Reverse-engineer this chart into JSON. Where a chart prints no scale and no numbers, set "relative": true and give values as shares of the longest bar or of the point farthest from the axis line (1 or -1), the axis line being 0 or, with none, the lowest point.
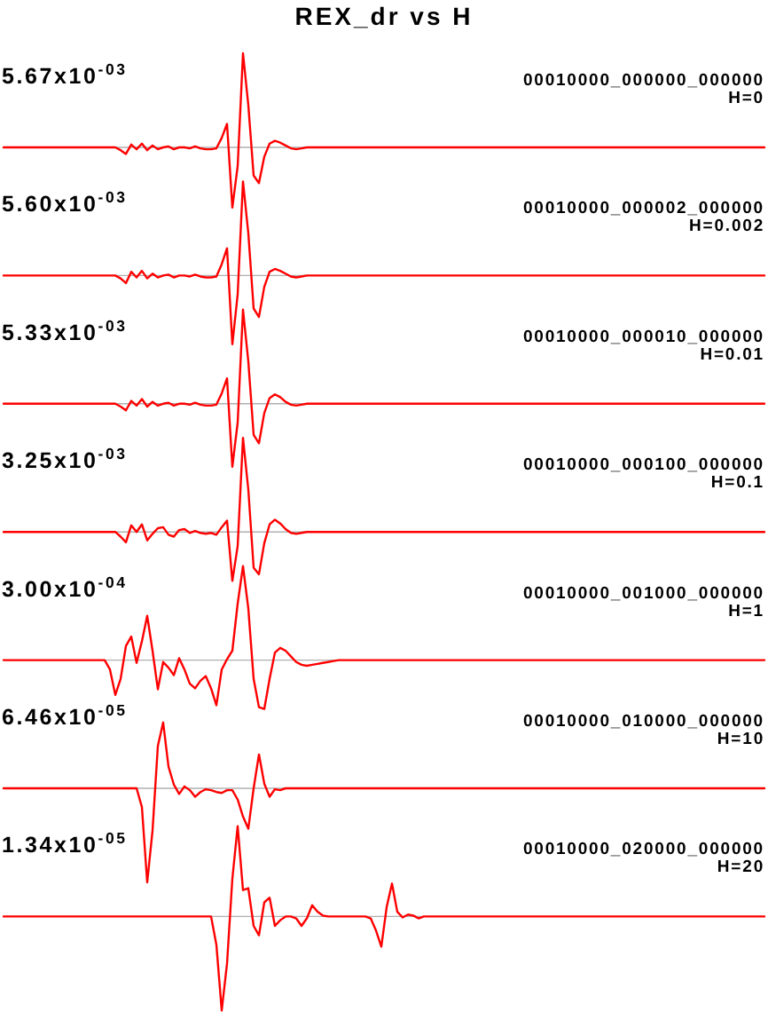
{
  "chart_data": [
    {
      "type": "line",
      "title": "REX_dr vs H",
      "relative": true,
      "annotations": [
        "5.67x10$^{-03}$",
        "00010000_000000_000000",
        "H=0"
      ],
      "categories": [
        null,
        null,
        null,
        null,
        null,
        null,
        null,
        null,
        null,
        null,
        null,
        null,
        null,
        null,
        null,
        null,
        null,
        null,
        null,
        null,
        null,
        null,
        null,
        null,
        null,
        null,
        null,
        null,
        null,
        null,
        null,
        null,
        null,
        null,
        null,
        null,
        null,
        null,
        null,
        null,
        null,
        null,
        null,
        null,
        null,
        null,
        null,
        null,
        null,
        null,
        null,
        null,
        null,
        null,
        null,
        null,
        null,
        null,
        null,
        null,
        null,
        null,
        null,
        null,
        null,
        null,
        null,
        null,
        null,
        null,
        null,
        null,
        null,
        null,
        null,
        null,
        null,
        null,
        null,
        null,
        null,
        null,
        null,
        null,
        null,
        null,
        null,
        null,
        null,
        null,
        null,
        null,
        null,
        null,
        null,
        null,
        null,
        null,
        null,
        null,
        null,
        null,
        null,
        null,
        null,
        null,
        null,
        null,
        null,
        null,
        null,
        null,
        null,
        null,
        null,
        null,
        null,
        null,
        null,
        null,
        null,
        null,
        null,
        null,
        null,
        null,
        null,
        null,
        null,
        null,
        null,
        null,
        null,
        null,
        null,
        null,
        null,
        null,
        null,
        null,
        null,
        null,
        null,
        null
      ],
      "series": [
        {
          "color": "#ff0000",
          "values": [
            0,
            0,
            0,
            0,
            0,
            0,
            0,
            0,
            0,
            0,
            0,
            0,
            0,
            0,
            0,
            0,
            0,
            0,
            0,
            0,
            0,
            0,
            -0.03,
            -0.07,
            0.03,
            -0.02,
            0.04,
            -0.03,
            0.02,
            -0.02,
            0,
            0.01,
            -0.02,
            0,
            0,
            -0.01,
            0.01,
            -0.01,
            -0.02,
            -0.02,
            -0.01,
            0.1,
            0.25,
            -0.64,
            -0.2,
            1,
            0.45,
            -0.3,
            -0.38,
            -0.1,
            0.04,
            0.07,
            0.05,
            0.02,
            -0.01,
            -0.02,
            -0.01,
            0,
            0,
            0,
            0,
            0,
            0,
            0,
            0,
            0,
            0,
            0,
            0,
            0,
            0,
            0,
            0,
            0,
            0,
            0,
            0,
            0,
            0,
            0,
            0,
            0,
            0,
            0,
            0,
            0,
            0,
            0,
            0,
            0,
            0,
            0,
            0,
            0,
            0,
            0,
            0,
            0,
            0,
            0,
            0,
            0,
            0,
            0,
            0,
            0,
            0,
            0,
            0,
            0,
            0,
            0,
            0,
            0,
            0,
            0,
            0,
            0,
            0,
            0,
            0,
            0,
            0,
            0,
            0,
            0,
            0,
            0,
            0,
            0,
            0,
            0,
            0,
            0,
            0,
            0,
            0,
            0,
            0,
            0,
            0,
            0,
            0,
            0
          ]
        }
      ]
    },
    {
      "type": "line",
      "relative": true,
      "annotations": [
        "5.60x10$^{-03}$",
        "00010000_000002_000000",
        "H=0.002"
      ],
      "categories": [
        null,
        null,
        null,
        null,
        null,
        null,
        null,
        null,
        null,
        null,
        null,
        null,
        null,
        null,
        null,
        null,
        null,
        null,
        null,
        null,
        null,
        null,
        null,
        null,
        null,
        null,
        null,
        null,
        null,
        null,
        null,
        null,
        null,
        null,
        null,
        null,
        null,
        null,
        null,
        null,
        null,
        null,
        null,
        null,
        null,
        null,
        null,
        null,
        null,
        null,
        null,
        null,
        null,
        null,
        null,
        null,
        null,
        null,
        null,
        null,
        null,
        null,
        null,
        null,
        null,
        null,
        null,
        null,
        null,
        null,
        null,
        null,
        null,
        null,
        null,
        null,
        null,
        null,
        null,
        null,
        null,
        null,
        null,
        null,
        null,
        null,
        null,
        null,
        null,
        null,
        null,
        null,
        null,
        null,
        null,
        null,
        null,
        null,
        null,
        null,
        null,
        null,
        null,
        null,
        null,
        null,
        null,
        null,
        null,
        null,
        null,
        null,
        null,
        null,
        null,
        null,
        null,
        null,
        null,
        null,
        null,
        null,
        null,
        null,
        null,
        null,
        null,
        null,
        null,
        null,
        null,
        null,
        null,
        null,
        null,
        null,
        null,
        null,
        null,
        null,
        null,
        null,
        null,
        null
      ],
      "series": [
        {
          "color": "#ff0000",
          "values": [
            0,
            0,
            0,
            0,
            0,
            0,
            0,
            0,
            0,
            0,
            0,
            0,
            0,
            0,
            0,
            0,
            0,
            0,
            0,
            0,
            0,
            0,
            -0.03,
            -0.08,
            0.04,
            -0.02,
            0.05,
            -0.03,
            0.02,
            -0.02,
            0,
            0.01,
            -0.02,
            0,
            0,
            -0.01,
            0.01,
            -0.01,
            -0.02,
            -0.02,
            -0.01,
            0.12,
            0.29,
            -0.73,
            -0.2,
            1,
            0.45,
            -0.35,
            -0.44,
            -0.12,
            0.04,
            0.07,
            0.05,
            0.02,
            -0.01,
            -0.02,
            -0.01,
            0,
            0,
            0,
            0,
            0,
            0,
            0,
            0,
            0,
            0,
            0,
            0,
            0,
            0,
            0,
            0,
            0,
            0,
            0,
            0,
            0,
            0,
            0,
            0,
            0,
            0,
            0,
            0,
            0,
            0,
            0,
            0,
            0,
            0,
            0,
            0,
            0,
            0,
            0,
            0,
            0,
            0,
            0,
            0,
            0,
            0,
            0,
            0,
            0,
            0,
            0,
            0,
            0,
            0,
            0,
            0,
            0,
            0,
            0,
            0,
            0,
            0,
            0,
            0,
            0,
            0,
            0,
            0,
            0,
            0,
            0,
            0,
            0,
            0,
            0,
            0,
            0,
            0,
            0,
            0,
            0,
            0,
            0,
            0,
            0,
            0,
            0
          ]
        }
      ]
    },
    {
      "type": "line",
      "relative": true,
      "annotations": [
        "5.33x10$^{-03}$",
        "00010000_000010_000000",
        "H=0.01"
      ],
      "categories": [
        null,
        null,
        null,
        null,
        null,
        null,
        null,
        null,
        null,
        null,
        null,
        null,
        null,
        null,
        null,
        null,
        null,
        null,
        null,
        null,
        null,
        null,
        null,
        null,
        null,
        null,
        null,
        null,
        null,
        null,
        null,
        null,
        null,
        null,
        null,
        null,
        null,
        null,
        null,
        null,
        null,
        null,
        null,
        null,
        null,
        null,
        null,
        null,
        null,
        null,
        null,
        null,
        null,
        null,
        null,
        null,
        null,
        null,
        null,
        null,
        null,
        null,
        null,
        null,
        null,
        null,
        null,
        null,
        null,
        null,
        null,
        null,
        null,
        null,
        null,
        null,
        null,
        null,
        null,
        null,
        null,
        null,
        null,
        null,
        null,
        null,
        null,
        null,
        null,
        null,
        null,
        null,
        null,
        null,
        null,
        null,
        null,
        null,
        null,
        null,
        null,
        null,
        null,
        null,
        null,
        null,
        null,
        null,
        null,
        null,
        null,
        null,
        null,
        null,
        null,
        null,
        null,
        null,
        null,
        null,
        null,
        null,
        null,
        null,
        null,
        null,
        null,
        null,
        null,
        null,
        null,
        null,
        null,
        null,
        null,
        null,
        null,
        null,
        null,
        null,
        null,
        null,
        null,
        null
      ],
      "series": [
        {
          "color": "#ff0000",
          "values": [
            0,
            0,
            0,
            0,
            0,
            0,
            0,
            0,
            0,
            0,
            0,
            0,
            0,
            0,
            0,
            0,
            0,
            0,
            0,
            0,
            0,
            0,
            -0.03,
            -0.07,
            0.03,
            -0.02,
            0.05,
            -0.03,
            0.02,
            -0.02,
            0,
            0.01,
            -0.02,
            0,
            0,
            -0.01,
            0.01,
            -0.01,
            -0.02,
            -0.02,
            -0.01,
            0.11,
            0.27,
            -0.67,
            -0.2,
            1,
            0.45,
            -0.33,
            -0.42,
            -0.1,
            0.06,
            0.1,
            0.07,
            0.02,
            -0.01,
            -0.02,
            -0.01,
            0,
            0,
            0,
            0,
            0,
            0,
            0,
            0,
            0,
            0,
            0,
            0,
            0,
            0,
            0,
            0,
            0,
            0,
            0,
            0,
            0,
            0,
            0,
            0,
            0,
            0,
            0,
            0,
            0,
            0,
            0,
            0,
            0,
            0,
            0,
            0,
            0,
            0,
            0,
            0,
            0,
            0,
            0,
            0,
            0,
            0,
            0,
            0,
            0,
            0,
            0,
            0,
            0,
            0,
            0,
            0,
            0,
            0,
            0,
            0,
            0,
            0,
            0,
            0,
            0,
            0,
            0,
            0,
            0,
            0,
            0,
            0,
            0,
            0,
            0,
            0,
            0,
            0,
            0,
            0,
            0,
            0,
            0,
            0,
            0,
            0,
            0
          ]
        }
      ]
    },
    {
      "type": "line",
      "relative": true,
      "annotations": [
        "3.25x10$^{-03}$",
        "00010000_000100_000000",
        "H=0.1"
      ],
      "categories": [
        null,
        null,
        null,
        null,
        null,
        null,
        null,
        null,
        null,
        null,
        null,
        null,
        null,
        null,
        null,
        null,
        null,
        null,
        null,
        null,
        null,
        null,
        null,
        null,
        null,
        null,
        null,
        null,
        null,
        null,
        null,
        null,
        null,
        null,
        null,
        null,
        null,
        null,
        null,
        null,
        null,
        null,
        null,
        null,
        null,
        null,
        null,
        null,
        null,
        null,
        null,
        null,
        null,
        null,
        null,
        null,
        null,
        null,
        null,
        null,
        null,
        null,
        null,
        null,
        null,
        null,
        null,
        null,
        null,
        null,
        null,
        null,
        null,
        null,
        null,
        null,
        null,
        null,
        null,
        null,
        null,
        null,
        null,
        null,
        null,
        null,
        null,
        null,
        null,
        null,
        null,
        null,
        null,
        null,
        null,
        null,
        null,
        null,
        null,
        null,
        null,
        null,
        null,
        null,
        null,
        null,
        null,
        null,
        null,
        null,
        null,
        null,
        null,
        null,
        null,
        null,
        null,
        null,
        null,
        null,
        null,
        null,
        null,
        null,
        null,
        null,
        null,
        null,
        null,
        null,
        null,
        null,
        null,
        null,
        null,
        null,
        null,
        null,
        null,
        null,
        null,
        null,
        null,
        null
      ],
      "series": [
        {
          "color": "#ff0000",
          "values": [
            0,
            0,
            0,
            0,
            0,
            0,
            0,
            0,
            0,
            0,
            0,
            0,
            0,
            0,
            0,
            0,
            0,
            0,
            0,
            0,
            0,
            0,
            -0.05,
            -0.11,
            0.07,
            0,
            0.08,
            -0.09,
            -0.02,
            0.04,
            0.05,
            -0.03,
            -0.05,
            0.02,
            0.03,
            -0.01,
            0.01,
            -0.01,
            -0.02,
            -0.01,
            -0.03,
            0.05,
            0.12,
            -0.52,
            -0.15,
            1,
            0.45,
            -0.38,
            -0.45,
            -0.12,
            0.08,
            0.13,
            0.09,
            0.03,
            -0.01,
            -0.02,
            -0.01,
            0,
            0,
            0,
            0,
            0,
            0,
            0,
            0,
            0,
            0,
            0,
            0,
            0,
            0,
            0,
            0,
            0,
            0,
            0,
            0,
            0,
            0,
            0,
            0,
            0,
            0,
            0,
            0,
            0,
            0,
            0,
            0,
            0,
            0,
            0,
            0,
            0,
            0,
            0,
            0,
            0,
            0,
            0,
            0,
            0,
            0,
            0,
            0,
            0,
            0,
            0,
            0,
            0,
            0,
            0,
            0,
            0,
            0,
            0,
            0,
            0,
            0,
            0,
            0,
            0,
            0,
            0,
            0,
            0,
            0,
            0,
            0,
            0,
            0,
            0,
            0,
            0,
            0,
            0,
            0,
            0,
            0,
            0,
            0,
            0,
            0,
            0
          ]
        }
      ]
    },
    {
      "type": "line",
      "relative": true,
      "annotations": [
        "3.00x10$^{-04}$",
        "00010000_001000_000000",
        "H=1"
      ],
      "categories": [
        null,
        null,
        null,
        null,
        null,
        null,
        null,
        null,
        null,
        null,
        null,
        null,
        null,
        null,
        null,
        null,
        null,
        null,
        null,
        null,
        null,
        null,
        null,
        null,
        null,
        null,
        null,
        null,
        null,
        null,
        null,
        null,
        null,
        null,
        null,
        null,
        null,
        null,
        null,
        null,
        null,
        null,
        null,
        null,
        null,
        null,
        null,
        null,
        null,
        null,
        null,
        null,
        null,
        null,
        null,
        null,
        null,
        null,
        null,
        null,
        null,
        null,
        null,
        null,
        null,
        null,
        null,
        null,
        null,
        null,
        null,
        null,
        null,
        null,
        null,
        null,
        null,
        null,
        null,
        null,
        null,
        null,
        null,
        null,
        null,
        null,
        null,
        null,
        null,
        null,
        null,
        null,
        null,
        null,
        null,
        null,
        null,
        null,
        null,
        null,
        null,
        null,
        null,
        null,
        null,
        null,
        null,
        null,
        null,
        null,
        null,
        null,
        null,
        null,
        null,
        null,
        null,
        null,
        null,
        null,
        null,
        null,
        null,
        null,
        null,
        null,
        null,
        null,
        null,
        null,
        null,
        null,
        null,
        null,
        null,
        null,
        null,
        null,
        null,
        null,
        null,
        null,
        null,
        null
      ],
      "series": [
        {
          "color": "#ff0000",
          "values": [
            0,
            0,
            0,
            0,
            0,
            0,
            0,
            0,
            0,
            0,
            0,
            0,
            0,
            0,
            0,
            0,
            0,
            0,
            0,
            0,
            -0.1,
            -0.37,
            -0.2,
            0.15,
            0.25,
            -0.03,
            0.2,
            0.47,
            0.1,
            -0.31,
            -0.02,
            -0.08,
            -0.16,
            0.02,
            -0.1,
            -0.25,
            -0.3,
            -0.22,
            -0.17,
            -0.3,
            -0.48,
            -0.1,
            0.01,
            0.1,
            0.6,
            1,
            0.55,
            -0.2,
            -0.5,
            -0.52,
            -0.2,
            0.08,
            0.13,
            0.1,
            0.04,
            -0.02,
            -0.05,
            -0.06,
            -0.05,
            -0.04,
            -0.03,
            -0.02,
            -0.01,
            0,
            0,
            0,
            0,
            0,
            0,
            0,
            0,
            0,
            0,
            0,
            0,
            0,
            0,
            0,
            0,
            0,
            0,
            0,
            0,
            0,
            0,
            0,
            0,
            0,
            0,
            0,
            0,
            0,
            0,
            0,
            0,
            0,
            0,
            0,
            0,
            0,
            0,
            0,
            0,
            0,
            0,
            0,
            0,
            0,
            0,
            0,
            0,
            0,
            0,
            0,
            0,
            0,
            0,
            0,
            0,
            0,
            0,
            0,
            0,
            0,
            0,
            0,
            0,
            0,
            0,
            0,
            0,
            0,
            0,
            0,
            0,
            0,
            0,
            0,
            0,
            0,
            0,
            0,
            0,
            0
          ]
        }
      ]
    },
    {
      "type": "line",
      "relative": true,
      "annotations": [
        "6.46x10$^{-05}$",
        "00010000_010000_000000",
        "H=10"
      ],
      "categories": [
        null,
        null,
        null,
        null,
        null,
        null,
        null,
        null,
        null,
        null,
        null,
        null,
        null,
        null,
        null,
        null,
        null,
        null,
        null,
        null,
        null,
        null,
        null,
        null,
        null,
        null,
        null,
        null,
        null,
        null,
        null,
        null,
        null,
        null,
        null,
        null,
        null,
        null,
        null,
        null,
        null,
        null,
        null,
        null,
        null,
        null,
        null,
        null,
        null,
        null,
        null,
        null,
        null,
        null,
        null,
        null,
        null,
        null,
        null,
        null,
        null,
        null,
        null,
        null,
        null,
        null,
        null,
        null,
        null,
        null,
        null,
        null,
        null,
        null,
        null,
        null,
        null,
        null,
        null,
        null,
        null,
        null,
        null,
        null,
        null,
        null,
        null,
        null,
        null,
        null,
        null,
        null,
        null,
        null,
        null,
        null,
        null,
        null,
        null,
        null,
        null,
        null,
        null,
        null,
        null,
        null,
        null,
        null,
        null,
        null,
        null,
        null,
        null,
        null,
        null,
        null,
        null,
        null,
        null,
        null,
        null,
        null,
        null,
        null,
        null,
        null,
        null,
        null,
        null,
        null,
        null,
        null,
        null,
        null,
        null,
        null,
        null,
        null,
        null,
        null,
        null,
        null,
        null,
        null
      ],
      "series": [
        {
          "color": "#ff0000",
          "values": [
            0,
            0,
            0,
            0,
            0,
            0,
            0,
            0,
            0,
            0,
            0,
            0,
            0,
            0,
            0,
            0,
            0,
            0,
            0,
            0,
            0,
            0,
            0,
            0,
            0,
            0,
            -0.2,
            -1,
            -0.45,
            0.45,
            0.7,
            0.23,
            0.04,
            -0.06,
            0.02,
            -0.02,
            -0.09,
            -0.04,
            -0.01,
            -0.02,
            -0.04,
            -0.05,
            -0.02,
            -0.02,
            -0.12,
            -0.3,
            -0.43,
            0,
            0.36,
            0.05,
            -0.09,
            -0.01,
            -0.02,
            0,
            0,
            0,
            0,
            0,
            0,
            0,
            0,
            0,
            0,
            0,
            0,
            0,
            0,
            0,
            0,
            0,
            0,
            0,
            0,
            0,
            0,
            0,
            0,
            0,
            0,
            0,
            0,
            0,
            0,
            0,
            0,
            0,
            0,
            0,
            0,
            0,
            0,
            0,
            0,
            0,
            0,
            0,
            0,
            0,
            0,
            0,
            0,
            0,
            0,
            0,
            0,
            0,
            0,
            0,
            0,
            0,
            0,
            0,
            0,
            0,
            0,
            0,
            0,
            0,
            0,
            0,
            0,
            0,
            0,
            0,
            0,
            0,
            0,
            0,
            0,
            0,
            0,
            0,
            0,
            0,
            0,
            0,
            0,
            0,
            0,
            0,
            0,
            0,
            0,
            0
          ]
        }
      ]
    },
    {
      "type": "line",
      "relative": true,
      "annotations": [
        "1.34x10$^{-05}$",
        "00010000_020000_000000",
        "H=20"
      ],
      "categories": [
        null,
        null,
        null,
        null,
        null,
        null,
        null,
        null,
        null,
        null,
        null,
        null,
        null,
        null,
        null,
        null,
        null,
        null,
        null,
        null,
        null,
        null,
        null,
        null,
        null,
        null,
        null,
        null,
        null,
        null,
        null,
        null,
        null,
        null,
        null,
        null,
        null,
        null,
        null,
        null,
        null,
        null,
        null,
        null,
        null,
        null,
        null,
        null,
        null,
        null,
        null,
        null,
        null,
        null,
        null,
        null,
        null,
        null,
        null,
        null,
        null,
        null,
        null,
        null,
        null,
        null,
        null,
        null,
        null,
        null,
        null,
        null,
        null,
        null,
        null,
        null,
        null,
        null,
        null,
        null,
        null,
        null,
        null,
        null,
        null,
        null,
        null,
        null,
        null,
        null,
        null,
        null,
        null,
        null,
        null,
        null,
        null,
        null,
        null,
        null,
        null,
        null,
        null,
        null,
        null,
        null,
        null,
        null,
        null,
        null,
        null,
        null,
        null,
        null,
        null,
        null,
        null,
        null,
        null,
        null,
        null,
        null,
        null,
        null,
        null,
        null,
        null,
        null,
        null,
        null,
        null,
        null,
        null,
        null,
        null,
        null,
        null,
        null,
        null,
        null,
        null,
        null,
        null,
        null
      ],
      "series": [
        {
          "color": "#ff0000",
          "values": [
            0,
            0,
            0,
            0,
            0,
            0,
            0,
            0,
            0,
            0,
            0,
            0,
            0,
            0,
            0,
            0,
            0,
            0,
            0,
            0,
            0,
            0,
            0,
            0,
            0,
            0,
            0,
            0,
            0,
            0,
            0,
            0,
            0,
            0,
            0,
            0,
            0,
            0,
            0,
            0,
            -0.3,
            -1,
            -0.5,
            0.4,
            0.96,
            0.28,
            0.3,
            -0.1,
            -0.2,
            0.15,
            0.2,
            -0.1,
            -0.04,
            0,
            0,
            -0.02,
            -0.1,
            -0.02,
            0.12,
            0.05,
            0.01,
            0,
            0,
            0,
            0,
            0,
            0,
            0,
            0,
            -0.02,
            -0.15,
            -0.32,
            0.1,
            0.35,
            0.05,
            -0.01,
            0.02,
            0.01,
            -0.02,
            0,
            0,
            0,
            0,
            0,
            0,
            0,
            0,
            0,
            0,
            0,
            0,
            0,
            0,
            0,
            0,
            0,
            0,
            0,
            0,
            0,
            0,
            0,
            0,
            0,
            0,
            0,
            0,
            0,
            0,
            0,
            0,
            0,
            0,
            0,
            0,
            0,
            0,
            0,
            0,
            0,
            0,
            0,
            0,
            0,
            0,
            0,
            0,
            0,
            0,
            0,
            0,
            0,
            0,
            0,
            0,
            0,
            0,
            0,
            0,
            0,
            0,
            0,
            0,
            0
          ]
        }
      ]
    }
  ]
}
